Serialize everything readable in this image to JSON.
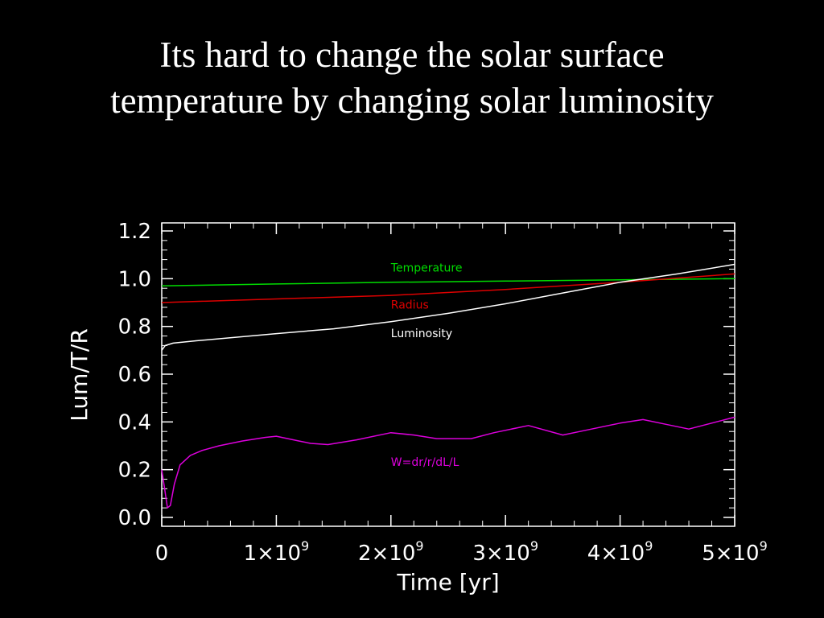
{
  "title": {
    "line1": "Its hard to change the solar surface",
    "line2": "temperature by changing solar luminosity"
  },
  "chart_data": {
    "type": "line",
    "xlabel": "Time [yr]",
    "ylabel": "Lum/T/R",
    "xlim": [
      0,
      5000000000
    ],
    "ylim": [
      0.0,
      1.2
    ],
    "x_ticks": [
      0,
      1000000000,
      2000000000,
      3000000000,
      4000000000,
      5000000000
    ],
    "x_tick_labels": [
      "0",
      "1×10",
      "2×10",
      "3×10",
      "4×10",
      "5×10"
    ],
    "x_tick_exponent": "9",
    "y_ticks": [
      0.0,
      0.2,
      0.4,
      0.6,
      0.8,
      1.0,
      1.2
    ],
    "y_tick_labels": [
      "0.0",
      "0.2",
      "0.4",
      "0.6",
      "0.8",
      "1.0",
      "1.2"
    ],
    "background": "#000000",
    "axis_color": "#ffffff",
    "series": [
      {
        "name": "Temperature",
        "color": "#00dd00",
        "label_at": [
          2000000000,
          1.03
        ],
        "points": [
          [
            0,
            0.97
          ],
          [
            1000000000,
            0.978
          ],
          [
            2000000000,
            0.985
          ],
          [
            3000000000,
            0.99
          ],
          [
            4000000000,
            0.995
          ],
          [
            5000000000,
            1.0
          ]
        ]
      },
      {
        "name": "Radius",
        "color": "#dd0000",
        "label_at": [
          2000000000,
          0.875
        ],
        "points": [
          [
            0,
            0.9
          ],
          [
            1000000000,
            0.915
          ],
          [
            2000000000,
            0.93
          ],
          [
            3000000000,
            0.955
          ],
          [
            4000000000,
            0.985
          ],
          [
            5000000000,
            1.02
          ]
        ]
      },
      {
        "name": "Luminosity",
        "color": "#ffffff",
        "label_at": [
          2000000000,
          0.755
        ],
        "points": [
          [
            0,
            0.7
          ],
          [
            30000000,
            0.72
          ],
          [
            100000000,
            0.73
          ],
          [
            300000000,
            0.74
          ],
          [
            1000000000,
            0.77
          ],
          [
            1500000000,
            0.79
          ],
          [
            2000000000,
            0.82
          ],
          [
            2500000000,
            0.855
          ],
          [
            3000000000,
            0.895
          ],
          [
            3500000000,
            0.94
          ],
          [
            4000000000,
            0.985
          ],
          [
            4500000000,
            1.02
          ],
          [
            5000000000,
            1.06
          ]
        ]
      },
      {
        "name": "W=dr/r/dL/L",
        "color": "#dd00dd",
        "label_at": [
          2000000000,
          0.215
        ],
        "points": [
          [
            0,
            0.2
          ],
          [
            25000000,
            0.12
          ],
          [
            50000000,
            0.04
          ],
          [
            75000000,
            0.05
          ],
          [
            110000000,
            0.14
          ],
          [
            160000000,
            0.22
          ],
          [
            250000000,
            0.26
          ],
          [
            350000000,
            0.28
          ],
          [
            500000000,
            0.3
          ],
          [
            700000000,
            0.32
          ],
          [
            900000000,
            0.335
          ],
          [
            1000000000,
            0.34
          ],
          [
            1200000000,
            0.32
          ],
          [
            1300000000,
            0.31
          ],
          [
            1450000000,
            0.305
          ],
          [
            1700000000,
            0.325
          ],
          [
            2000000000,
            0.355
          ],
          [
            2200000000,
            0.345
          ],
          [
            2400000000,
            0.33
          ],
          [
            2700000000,
            0.33
          ],
          [
            2900000000,
            0.355
          ],
          [
            3200000000,
            0.385
          ],
          [
            3500000000,
            0.345
          ],
          [
            3700000000,
            0.365
          ],
          [
            4000000000,
            0.395
          ],
          [
            4200000000,
            0.41
          ],
          [
            4400000000,
            0.39
          ],
          [
            4600000000,
            0.37
          ],
          [
            5000000000,
            0.42
          ]
        ]
      }
    ]
  }
}
